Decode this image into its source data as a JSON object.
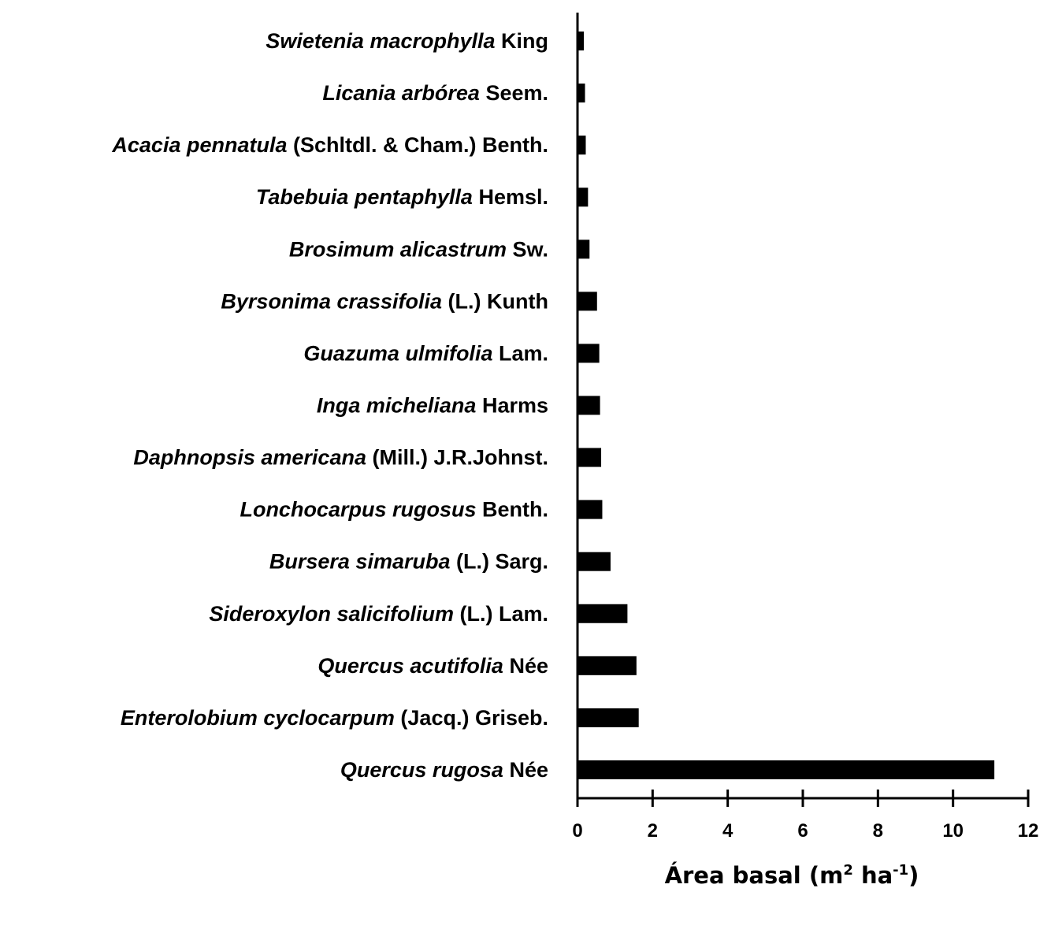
{
  "chart_data": {
    "type": "bar",
    "orientation": "horizontal",
    "categories": [
      {
        "species": "Swietenia macrophylla",
        "authority": "King"
      },
      {
        "species": "Licania arbórea",
        "authority": "Seem."
      },
      {
        "species": "Acacia pennatula",
        "authority": "(Schltdl. & Cham.) Benth."
      },
      {
        "species": "Tabebuia pentaphylla",
        "authority": "Hemsl."
      },
      {
        "species": "Brosimum alicastrum",
        "authority": "Sw."
      },
      {
        "species": "Byrsonima crassifolia",
        "authority": "(L.) Kunth"
      },
      {
        "species": "Guazuma ulmifolia",
        "authority": "Lam."
      },
      {
        "species": "Inga micheliana",
        "authority": "Harms"
      },
      {
        "species": "Daphnopsis americana",
        "authority": "(Mill.) J.R.Johnst."
      },
      {
        "species": "Lonchocarpus rugosus",
        "authority": "Benth."
      },
      {
        "species": "Bursera simaruba",
        "authority": "(L.) Sarg."
      },
      {
        "species": "Sideroxylon salicifolium",
        "authority": "(L.) Lam."
      },
      {
        "species": "Quercus acutifolia",
        "authority": "Née"
      },
      {
        "species": "Enterolobium cyclocarpum",
        "authority": "(Jacq.) Griseb."
      },
      {
        "species": "Quercus rugosa",
        "authority": "Née"
      }
    ],
    "values": [
      0.17,
      0.2,
      0.22,
      0.28,
      0.32,
      0.52,
      0.58,
      0.6,
      0.63,
      0.66,
      0.88,
      1.33,
      1.57,
      1.63,
      11.1
    ],
    "xlabel": {
      "text": "Área basal (m",
      "sup1": "2",
      "mid": " ha",
      "sup2": "-1",
      "end": ")"
    },
    "xlim": [
      0,
      12
    ],
    "xticks": [
      0,
      2,
      4,
      6,
      8,
      10,
      12
    ],
    "grid": false,
    "bar_color": "#000000"
  }
}
